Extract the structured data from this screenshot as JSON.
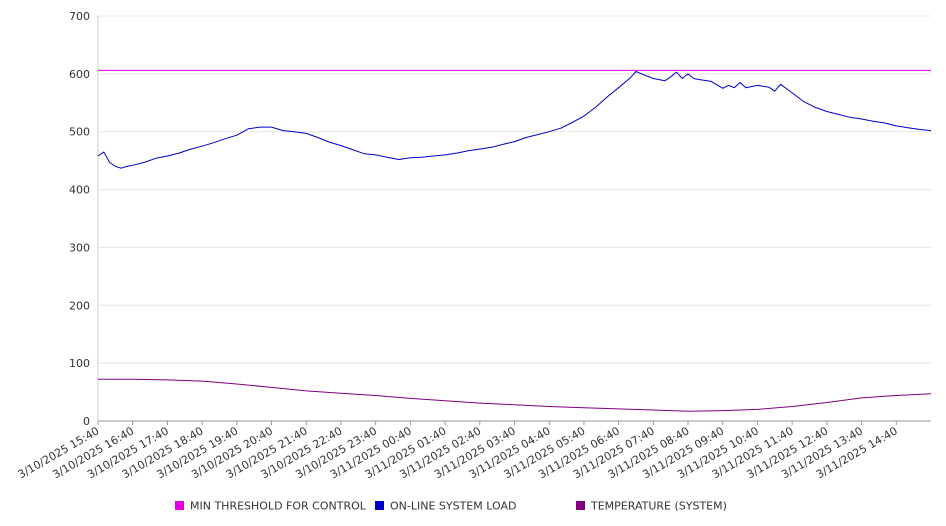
{
  "chart_data": {
    "type": "line",
    "title": "",
    "xlabel": "",
    "ylabel": "",
    "ylim": [
      0,
      700
    ],
    "y_ticks": [
      0,
      100,
      200,
      300,
      400,
      500,
      600,
      700
    ],
    "grid": true,
    "legend_position": "bottom",
    "x_tick_labels": [
      "3/10/2025 15:40",
      "3/10/2025 16:40",
      "3/10/2025 17:40",
      "3/10/2025 18:40",
      "3/10/2025 19:40",
      "3/10/2025 20:40",
      "3/10/2025 21:40",
      "3/10/2025 22:40",
      "3/10/2025 23:40",
      "3/11/2025 00:40",
      "3/11/2025 01:40",
      "3/11/2025 02:40",
      "3/11/2025 03:40",
      "3/11/2025 04:40",
      "3/11/2025 05:40",
      "3/11/2025 06:40",
      "3/11/2025 07:40",
      "3/11/2025 08:40",
      "3/11/2025 09:40",
      "3/11/2025 10:40",
      "3/11/2025 11:40",
      "3/11/2025 12:40",
      "3/11/2025 13:40",
      "3/11/2025 14:40"
    ],
    "series": [
      {
        "name": "MIN THRESHOLD FOR CONTROL",
        "color": "#e000e0",
        "points": [
          [
            "3/10/2025 15:40",
            606
          ],
          [
            "3/11/2025 15:40",
            606
          ]
        ]
      },
      {
        "name": "ON-LINE SYSTEM LOAD",
        "color": "#0000cc",
        "points": [
          [
            "3/10/2025 15:40",
            458
          ],
          [
            "3/10/2025 15:50",
            465
          ],
          [
            "3/10/2025 16:00",
            447
          ],
          [
            "3/10/2025 16:10",
            440
          ],
          [
            "3/10/2025 16:20",
            437
          ],
          [
            "3/10/2025 16:30",
            440
          ],
          [
            "3/10/2025 16:40",
            442
          ],
          [
            "3/10/2025 17:00",
            447
          ],
          [
            "3/10/2025 17:20",
            454
          ],
          [
            "3/10/2025 17:40",
            458
          ],
          [
            "3/10/2025 18:00",
            463
          ],
          [
            "3/10/2025 18:20",
            470
          ],
          [
            "3/10/2025 18:40",
            475
          ],
          [
            "3/10/2025 19:00",
            481
          ],
          [
            "3/10/2025 19:20",
            488
          ],
          [
            "3/10/2025 19:40",
            494
          ],
          [
            "3/10/2025 20:00",
            505
          ],
          [
            "3/10/2025 20:20",
            508
          ],
          [
            "3/10/2025 20:40",
            508
          ],
          [
            "3/10/2025 21:00",
            502
          ],
          [
            "3/10/2025 21:20",
            500
          ],
          [
            "3/10/2025 21:40",
            497
          ],
          [
            "3/10/2025 22:00",
            490
          ],
          [
            "3/10/2025 22:20",
            482
          ],
          [
            "3/10/2025 22:40",
            476
          ],
          [
            "3/10/2025 23:00",
            469
          ],
          [
            "3/10/2025 23:20",
            462
          ],
          [
            "3/10/2025 23:40",
            460
          ],
          [
            "3/11/2025 00:00",
            456
          ],
          [
            "3/11/2025 00:20",
            452
          ],
          [
            "3/11/2025 00:40",
            455
          ],
          [
            "3/11/2025 01:00",
            456
          ],
          [
            "3/11/2025 01:20",
            458
          ],
          [
            "3/11/2025 01:40",
            460
          ],
          [
            "3/11/2025 02:00",
            463
          ],
          [
            "3/11/2025 02:20",
            467
          ],
          [
            "3/11/2025 02:40",
            470
          ],
          [
            "3/11/2025 03:00",
            473
          ],
          [
            "3/11/2025 03:20",
            478
          ],
          [
            "3/11/2025 03:40",
            483
          ],
          [
            "3/11/2025 04:00",
            490
          ],
          [
            "3/11/2025 04:20",
            495
          ],
          [
            "3/11/2025 04:40",
            500
          ],
          [
            "3/11/2025 05:00",
            506
          ],
          [
            "3/11/2025 05:20",
            516
          ],
          [
            "3/11/2025 05:40",
            527
          ],
          [
            "3/11/2025 06:00",
            542
          ],
          [
            "3/11/2025 06:20",
            560
          ],
          [
            "3/11/2025 06:40",
            576
          ],
          [
            "3/11/2025 07:00",
            593
          ],
          [
            "3/11/2025 07:10",
            604
          ],
          [
            "3/11/2025 07:20",
            600
          ],
          [
            "3/11/2025 07:40",
            592
          ],
          [
            "3/11/2025 08:00",
            588
          ],
          [
            "3/11/2025 08:10",
            595
          ],
          [
            "3/11/2025 08:20",
            603
          ],
          [
            "3/11/2025 08:30",
            592
          ],
          [
            "3/11/2025 08:40",
            600
          ],
          [
            "3/11/2025 08:50",
            592
          ],
          [
            "3/11/2025 09:00",
            590
          ],
          [
            "3/11/2025 09:20",
            587
          ],
          [
            "3/11/2025 09:40",
            575
          ],
          [
            "3/11/2025 09:50",
            580
          ],
          [
            "3/11/2025 10:00",
            576
          ],
          [
            "3/11/2025 10:10",
            585
          ],
          [
            "3/11/2025 10:20",
            576
          ],
          [
            "3/11/2025 10:40",
            580
          ],
          [
            "3/11/2025 11:00",
            577
          ],
          [
            "3/11/2025 11:10",
            570
          ],
          [
            "3/11/2025 11:20",
            582
          ],
          [
            "3/11/2025 11:40",
            567
          ],
          [
            "3/11/2025 12:00",
            552
          ],
          [
            "3/11/2025 12:20",
            542
          ],
          [
            "3/11/2025 12:40",
            535
          ],
          [
            "3/11/2025 13:00",
            530
          ],
          [
            "3/11/2025 13:20",
            525
          ],
          [
            "3/11/2025 13:40",
            522
          ],
          [
            "3/11/2025 14:00",
            518
          ],
          [
            "3/11/2025 14:20",
            515
          ],
          [
            "3/11/2025 14:40",
            510
          ],
          [
            "3/11/2025 15:00",
            507
          ],
          [
            "3/11/2025 15:20",
            504
          ],
          [
            "3/11/2025 15:40",
            502
          ]
        ]
      },
      {
        "name": "TEMPERATURE (SYSTEM)",
        "color": "#800080",
        "points": [
          [
            "3/10/2025 15:40",
            72
          ],
          [
            "3/10/2025 16:40",
            72
          ],
          [
            "3/10/2025 17:40",
            71
          ],
          [
            "3/10/2025 18:40",
            69
          ],
          [
            "3/10/2025 19:40",
            64
          ],
          [
            "3/10/2025 20:40",
            58
          ],
          [
            "3/10/2025 21:40",
            52
          ],
          [
            "3/10/2025 22:40",
            48
          ],
          [
            "3/10/2025 23:40",
            44
          ],
          [
            "3/11/2025 00:40",
            39
          ],
          [
            "3/11/2025 01:40",
            35
          ],
          [
            "3/11/2025 02:40",
            31
          ],
          [
            "3/11/2025 03:40",
            28
          ],
          [
            "3/11/2025 04:40",
            25
          ],
          [
            "3/11/2025 05:40",
            23
          ],
          [
            "3/11/2025 06:40",
            21
          ],
          [
            "3/11/2025 07:40",
            19
          ],
          [
            "3/11/2025 08:40",
            17
          ],
          [
            "3/11/2025 09:40",
            18
          ],
          [
            "3/11/2025 10:40",
            20
          ],
          [
            "3/11/2025 11:40",
            25
          ],
          [
            "3/11/2025 12:40",
            32
          ],
          [
            "3/11/2025 13:40",
            40
          ],
          [
            "3/11/2025 14:40",
            44
          ],
          [
            "3/11/2025 15:40",
            47
          ]
        ]
      }
    ]
  }
}
